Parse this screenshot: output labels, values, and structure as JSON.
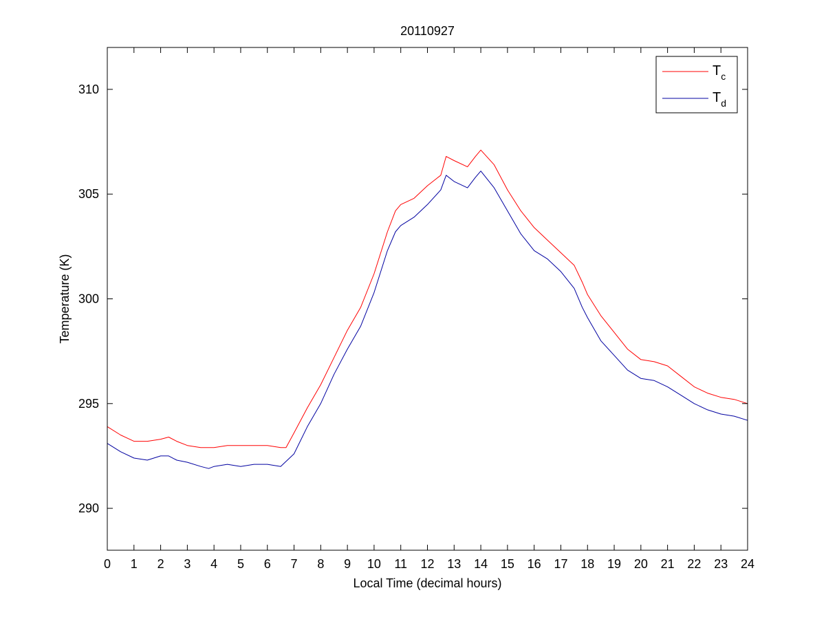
{
  "chart_data": {
    "type": "line",
    "title": "20110927",
    "xlabel": "Local Time (decimal hours)",
    "ylabel": "Temperature (K)",
    "xlim": [
      0,
      24
    ],
    "ylim": [
      288,
      312
    ],
    "xticks": [
      0,
      1,
      2,
      3,
      4,
      5,
      6,
      7,
      8,
      9,
      10,
      11,
      12,
      13,
      14,
      15,
      16,
      17,
      18,
      19,
      20,
      21,
      22,
      23,
      24
    ],
    "yticks": [
      290,
      295,
      300,
      305,
      310
    ],
    "grid": false,
    "legend_position": "top-right",
    "series": [
      {
        "name": "Tc",
        "label_main": "T",
        "label_sub": "c",
        "color": "#ff0000",
        "x": [
          0,
          0.5,
          1,
          1.5,
          2,
          2.3,
          2.6,
          3,
          3.5,
          4,
          4.5,
          5,
          5.5,
          6,
          6.5,
          6.7,
          7,
          7.5,
          8,
          8.5,
          9,
          9.5,
          10,
          10.5,
          10.8,
          11,
          11.5,
          12,
          12.5,
          12.7,
          13,
          13.5,
          13.8,
          14,
          14.5,
          15,
          15.5,
          16,
          16.5,
          17,
          17.5,
          17.8,
          18,
          18.5,
          19,
          19.5,
          20,
          20.5,
          21,
          21.5,
          22,
          22.5,
          23,
          23.5,
          24
        ],
        "y": [
          293.9,
          293.5,
          293.2,
          293.2,
          293.3,
          293.4,
          293.2,
          293.0,
          292.9,
          292.9,
          293.0,
          293.0,
          293.0,
          293.0,
          292.9,
          292.9,
          293.6,
          294.8,
          295.9,
          297.2,
          298.5,
          299.6,
          301.2,
          303.2,
          304.2,
          304.5,
          304.8,
          305.4,
          305.9,
          306.8,
          306.6,
          306.3,
          306.8,
          307.1,
          306.4,
          305.2,
          304.2,
          303.4,
          302.8,
          302.2,
          301.6,
          300.8,
          300.2,
          299.2,
          298.4,
          297.6,
          297.1,
          297.0,
          296.8,
          296.3,
          295.8,
          295.5,
          295.3,
          295.2,
          295.0
        ]
      },
      {
        "name": "Td",
        "label_main": "T",
        "label_sub": "d",
        "color": "#0000a0",
        "x": [
          0,
          0.5,
          1,
          1.5,
          2,
          2.3,
          2.6,
          3,
          3.5,
          3.8,
          4,
          4.5,
          5,
          5.5,
          6,
          6.5,
          7,
          7.5,
          8,
          8.5,
          9,
          9.5,
          10,
          10.5,
          10.8,
          11,
          11.5,
          12,
          12.5,
          12.7,
          13,
          13.5,
          13.8,
          14,
          14.5,
          15,
          15.5,
          16,
          16.5,
          17,
          17.5,
          17.8,
          18,
          18.5,
          19,
          19.5,
          20,
          20.5,
          21,
          21.5,
          22,
          22.5,
          23,
          23.5,
          24
        ],
        "y": [
          293.1,
          292.7,
          292.4,
          292.3,
          292.5,
          292.5,
          292.3,
          292.2,
          292.0,
          291.9,
          292.0,
          292.1,
          292.0,
          292.1,
          292.1,
          292.0,
          292.6,
          293.9,
          295.0,
          296.4,
          297.6,
          298.7,
          300.3,
          302.3,
          303.2,
          303.5,
          303.9,
          304.5,
          305.2,
          305.9,
          305.6,
          305.3,
          305.8,
          306.1,
          305.3,
          304.2,
          303.1,
          302.3,
          301.9,
          301.3,
          300.5,
          299.6,
          299.1,
          298.0,
          297.3,
          296.6,
          296.2,
          296.1,
          295.8,
          295.4,
          295.0,
          294.7,
          294.5,
          294.4,
          294.2
        ]
      }
    ]
  }
}
